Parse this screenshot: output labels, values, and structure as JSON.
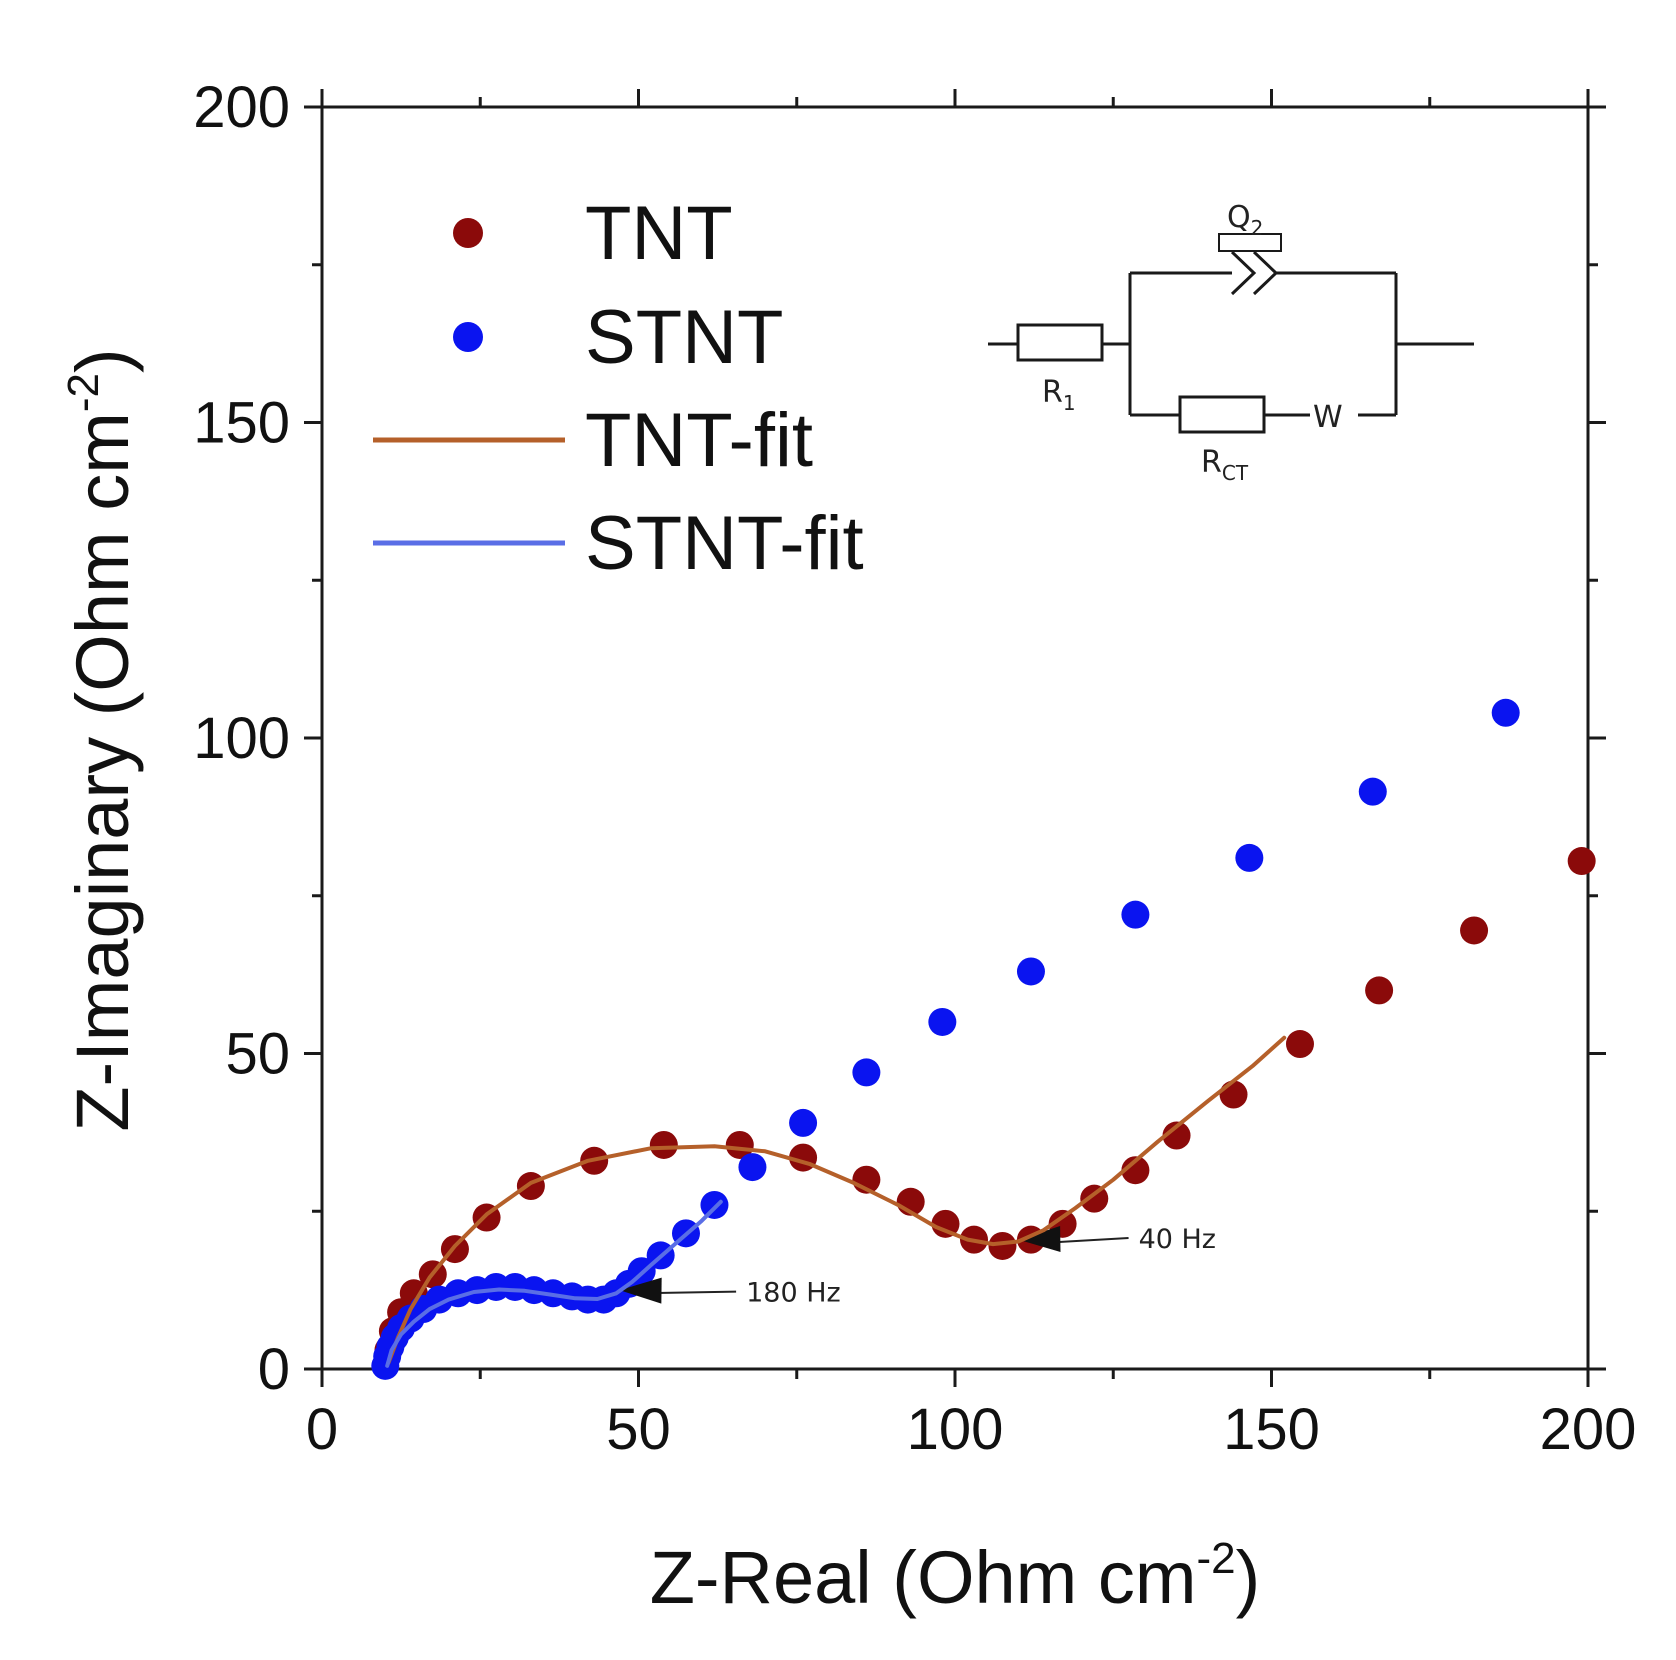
{
  "chart_data": {
    "type": "scatter",
    "xlabel": "Z-Real (Ohm cm",
    "xlabel_sup": "-2",
    "xlabel_end": ")",
    "ylabel": "Z-Imaginary (Ohm cm",
    "ylabel_sup": "-2",
    "ylabel_end": ")",
    "xlim": [
      0,
      200
    ],
    "ylim": [
      0,
      200
    ],
    "x_ticks": [
      0,
      50,
      100,
      150,
      200
    ],
    "y_ticks": [
      0,
      50,
      100,
      150,
      200
    ],
    "x_tick_labels": [
      "0",
      "50",
      "100",
      "150",
      "200"
    ],
    "y_tick_labels": [
      "0",
      "50",
      "100",
      "150",
      "200"
    ],
    "legend_position": "top-left",
    "series": [
      {
        "name": "TNT",
        "kind": "markers",
        "color": "#8b0a0a",
        "x": [
          10.5,
          11.2,
          12.5,
          14.5,
          17.5,
          21,
          26,
          33,
          43,
          54,
          66,
          76,
          86,
          93,
          98.5,
          103,
          107.5,
          112,
          117,
          122,
          128.5,
          135,
          144,
          154.5,
          167,
          182,
          199
        ],
        "y": [
          3,
          6,
          9,
          12,
          15,
          19,
          24,
          29,
          33,
          35.5,
          35.5,
          33.5,
          30,
          26.5,
          23,
          20.5,
          19.5,
          20.5,
          23,
          27,
          31.5,
          37,
          43.5,
          51.5,
          60,
          69.5,
          80.5
        ]
      },
      {
        "name": "STNT",
        "kind": "markers",
        "color": "#0a14f0",
        "x": [
          10,
          10.3,
          10.8,
          11.5,
          12.5,
          14,
          16,
          18.5,
          21.5,
          24.5,
          27.5,
          30.5,
          33.5,
          36.5,
          39.5,
          42,
          44.5,
          46.5,
          48.5,
          50.5,
          53.5,
          57.5,
          62,
          68,
          76,
          86,
          98,
          112,
          128.5,
          146.5,
          166,
          187
        ],
        "y": [
          0.5,
          2,
          3.5,
          5,
          6.5,
          8,
          9.5,
          11,
          12,
          12.5,
          13,
          13,
          12.5,
          12,
          11.5,
          11,
          11,
          12,
          13.5,
          15.5,
          18,
          21.5,
          26,
          32,
          39,
          47,
          55,
          63,
          72,
          81,
          91.5,
          104
        ]
      },
      {
        "name": "TNT-fit",
        "kind": "line",
        "color": "#b5602a",
        "x": [
          10.5,
          12,
          14,
          17,
          21,
          26,
          33,
          42,
          52,
          62,
          70,
          77,
          84,
          91,
          97,
          102,
          106,
          110,
          114,
          119,
          125,
          132,
          140,
          147,
          152
        ],
        "y": [
          1,
          5,
          9.5,
          14.5,
          19.5,
          24.5,
          29.5,
          33,
          35,
          35.3,
          34.5,
          32.5,
          29.5,
          26,
          22.5,
          20.5,
          19.8,
          20.2,
          22,
          25.5,
          30,
          36,
          42.5,
          48,
          52.5
        ]
      },
      {
        "name": "STNT-fit",
        "kind": "line",
        "color": "#5a6ee6",
        "x": [
          10.3,
          11,
          12.5,
          14.5,
          17,
          20,
          24,
          28,
          32,
          36,
          40,
          43.5,
          46.5,
          49,
          52,
          56,
          60,
          63
        ],
        "y": [
          0.5,
          3,
          5.5,
          7.5,
          9.5,
          11,
          12.2,
          12.6,
          12.4,
          11.8,
          11.2,
          11.1,
          12,
          13.8,
          16.5,
          20,
          23.5,
          26.5
        ]
      }
    ],
    "annotations": [
      {
        "text": "180 Hz",
        "point": [
          47,
          12.5
        ],
        "label_at": [
          67,
          11
        ]
      },
      {
        "text": "40 Hz",
        "point": [
          110,
          20.5
        ],
        "label_at": [
          129,
          19.5
        ]
      }
    ],
    "circuit": {
      "r1": "R",
      "r1_sub": "1",
      "q2": "Q",
      "q2_sub": "2",
      "rct": "R",
      "rct_sub": "CT",
      "w": "W"
    }
  }
}
